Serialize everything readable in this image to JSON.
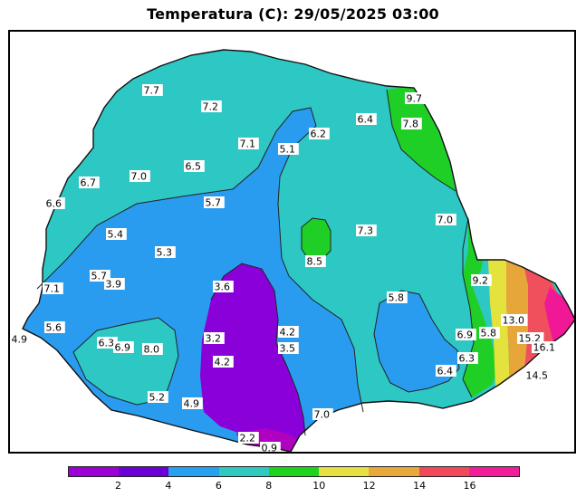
{
  "title": "Temperatura (C): 29/05/2025 03:00",
  "legend": {
    "colors": [
      "#9b00d6",
      "#6a00d6",
      "#28a0f0",
      "#2fc9c0",
      "#1ed21e",
      "#e6e040",
      "#e8a83a",
      "#f04a5a",
      "#f01e9a"
    ],
    "ticks": [
      "2",
      "4",
      "6",
      "8",
      "10",
      "12",
      "14",
      "16"
    ]
  },
  "colors": {
    "band_4_6": "#2a9cf0",
    "band_6_8": "#2dc8c4",
    "band_8_10": "#1fcf26",
    "band_2_4": "#8a00d8",
    "band_0_2": "#b000c0",
    "band_10_12": "#e4e23c",
    "band_12_14": "#e6a63a",
    "band_14_16": "#f0505c",
    "band_16_18": "#f01896"
  },
  "stations": [
    {
      "value": "7.7"
    },
    {
      "value": "7.2"
    },
    {
      "value": "9.7"
    },
    {
      "value": "6.4"
    },
    {
      "value": "7.8"
    },
    {
      "value": "6.2"
    },
    {
      "value": "7.1"
    },
    {
      "value": "5.1"
    },
    {
      "value": "6.5"
    },
    {
      "value": "6.7"
    },
    {
      "value": "7.0"
    },
    {
      "value": "6.6"
    },
    {
      "value": "5.7"
    },
    {
      "value": "7.3"
    },
    {
      "value": "7.0"
    },
    {
      "value": "5.4"
    },
    {
      "value": "5.3"
    },
    {
      "value": "8.5"
    },
    {
      "value": "5.7"
    },
    {
      "value": "3.9"
    },
    {
      "value": "9.2"
    },
    {
      "value": "7.1"
    },
    {
      "value": "3.6"
    },
    {
      "value": "5.8"
    },
    {
      "value": "13.0"
    },
    {
      "value": "5.6"
    },
    {
      "value": "4.2"
    },
    {
      "value": "6.9"
    },
    {
      "value": "5.8"
    },
    {
      "value": "4.9"
    },
    {
      "value": "3.2"
    },
    {
      "value": "15.2"
    },
    {
      "value": "16.1"
    },
    {
      "value": "6.3"
    },
    {
      "value": "6.9"
    },
    {
      "value": "8.0"
    },
    {
      "value": "3.5"
    },
    {
      "value": "6.3"
    },
    {
      "value": "4.2"
    },
    {
      "value": "6.4"
    },
    {
      "value": "14.5"
    },
    {
      "value": "5.2"
    },
    {
      "value": "4.9"
    },
    {
      "value": "7.0"
    },
    {
      "value": "2.2"
    },
    {
      "value": "0.9"
    }
  ]
}
